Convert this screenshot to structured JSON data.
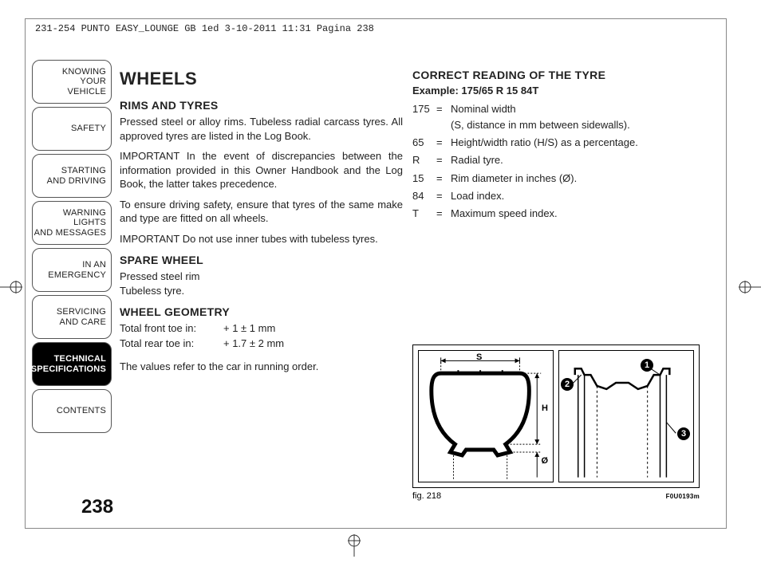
{
  "meta": {
    "header_line": "231-254 PUNTO EASY_LOUNGE GB 1ed  3-10-2011  11:31  Pagina 238",
    "page_number": "238"
  },
  "sidebar": {
    "tabs": [
      {
        "lines": [
          "KNOWING",
          "YOUR",
          "VEHICLE"
        ],
        "active": false
      },
      {
        "lines": [
          "SAFETY"
        ],
        "active": false
      },
      {
        "lines": [
          "STARTING",
          "AND DRIVING"
        ],
        "active": false
      },
      {
        "lines": [
          "WARNING LIGHTS",
          "AND MESSAGES"
        ],
        "active": false
      },
      {
        "lines": [
          "IN AN",
          "EMERGENCY"
        ],
        "active": false
      },
      {
        "lines": [
          "SERVICING",
          "AND CARE"
        ],
        "active": false
      },
      {
        "lines": [
          "TECHNICAL",
          "SPECIFICATIONS"
        ],
        "active": true
      },
      {
        "lines": [
          "CONTENTS"
        ],
        "active": false
      }
    ]
  },
  "left_col": {
    "title": "WHEELS",
    "s1_heading": "RIMS AND TYRES",
    "s1_p1": "Pressed steel or alloy rims. Tubeless radial carcass tyres. All approved tyres are listed in the Log Book.",
    "s1_p2": "IMPORTANT In the event of discrepancies between the information provided in this Owner Handbook and the Log Book, the latter takes precedence.",
    "s1_p3": "To ensure driving safety, ensure that tyres of the same make and type are fitted on all wheels.",
    "s1_p4": "IMPORTANT Do not use inner tubes with tubeless tyres.",
    "s2_heading": "SPARE WHEEL",
    "s2_p1": "Pressed steel rim",
    "s2_p2": "Tubeless tyre.",
    "s3_heading": "WHEEL GEOMETRY",
    "s3_rows": [
      {
        "label": "Total front toe in:",
        "value": "+ 1 ± 1 mm"
      },
      {
        "label": "Total rear toe in:",
        "value": "+ 1.7 ± 2 mm"
      }
    ],
    "s3_note": "The values refer to the car in running order."
  },
  "right_col": {
    "heading": "CORRECT READING OF THE TYRE",
    "example": "Example: 175/65 R 15 84T",
    "defs": [
      {
        "code": "175",
        "text1": "Nominal width",
        "text2": "(S, distance in mm between sidewalls)."
      },
      {
        "code": "65",
        "text1": "Height/width ratio (H/S) as a percentage."
      },
      {
        "code": "R",
        "text1": "Radial tyre."
      },
      {
        "code": "15",
        "text1": "Rim diameter in inches (Ø)."
      },
      {
        "code": "84",
        "text1": "Load index."
      },
      {
        "code": "T",
        "text1": "Maximum speed index."
      }
    ]
  },
  "figure": {
    "caption": "fig. 218",
    "code": "F0U0193m",
    "dims": {
      "s": "S",
      "h": "H",
      "d": "Ø"
    },
    "callouts": {
      "c1": "1",
      "c2": "2",
      "c3": "3"
    }
  },
  "style": {
    "text_color": "#222222",
    "border_color": "#555555",
    "active_bg": "#000000",
    "active_fg": "#ffffff"
  }
}
